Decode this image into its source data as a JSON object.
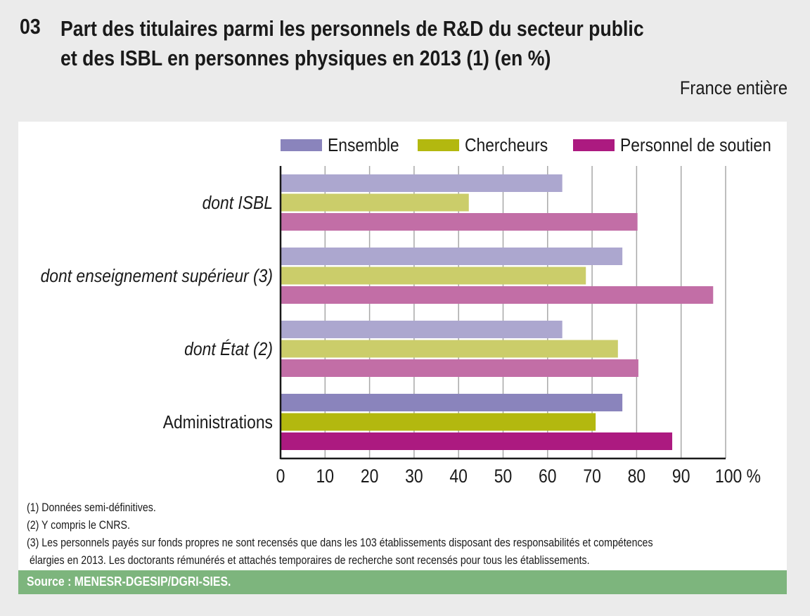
{
  "header": {
    "number": "03",
    "title_line1": "Part des titulaires parmi les personnels de R&D du secteur public",
    "title_line2": "et des ISBL en personnes physiques en 2013 (1) (en %)",
    "scope": "France entière"
  },
  "notes": [
    "(1) Données semi-définitives.",
    "(2) Y compris le CNRS.",
    "(3) Les personnels payés sur fonds propres ne sont recensés que dans les 103 établissements disposant des responsabilités et compétences",
    " élargies en 2013. Les doctorants rémunérés et attachés temporaires de recherche sont recensés pour tous les établissements."
  ],
  "source": "Source : MENESR-DGESIP/DGRI-SIES.",
  "chart_data": {
    "type": "bar",
    "orientation": "horizontal",
    "title": "Part des titulaires parmi les personnels de R&D du secteur public et des ISBL en personnes physiques en 2013 (1) (en %)",
    "categories": [
      "dont ISBL",
      "dont enseignement supérieur (3)",
      "dont État (2)",
      "Administrations"
    ],
    "category_italic": [
      true,
      true,
      true,
      false
    ],
    "series": [
      {
        "name": "Ensemble",
        "color": "#8a84bc",
        "light_color": "#aca7cf",
        "values": [
          63.3,
          76.8,
          63.3,
          76.8
        ]
      },
      {
        "name": "Chercheurs",
        "color": "#b3b80f",
        "light_color": "#cbcd6a",
        "values": [
          42.3,
          68.6,
          75.8,
          70.8
        ]
      },
      {
        "name": "Personnel de soutien",
        "color": "#ac1a80",
        "light_color": "#c26ea6",
        "values": [
          80.2,
          97.2,
          80.4,
          88.0
        ]
      }
    ],
    "xlabel": "",
    "ylabel": "",
    "xlim": [
      0,
      100
    ],
    "xticks": [
      "0",
      "10",
      "20",
      "30",
      "40",
      "50",
      "60",
      "70",
      "80",
      "90",
      "100 %"
    ],
    "grid": true,
    "legend": "top-right"
  }
}
